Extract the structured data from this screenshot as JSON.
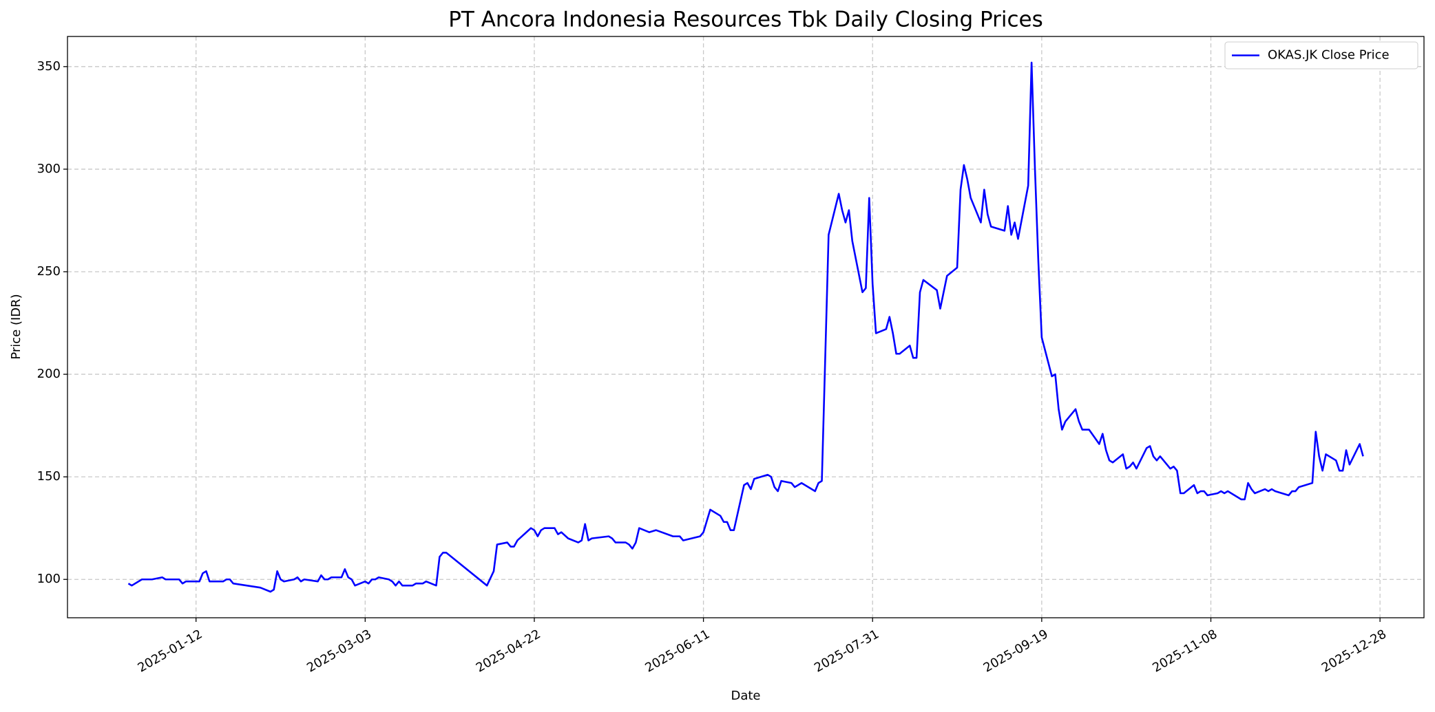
{
  "chart_data": {
    "type": "line",
    "title": "PT Ancora Indonesia Resources Tbk Daily Closing Prices",
    "x_label": "Date",
    "y_label": "Price (IDR)",
    "x": [
      "2024-12-23",
      "2024-12-24",
      "2024-12-27",
      "2024-12-30",
      "2025-01-02",
      "2025-01-03",
      "2025-01-07",
      "2025-01-08",
      "2025-01-09",
      "2025-01-13",
      "2025-01-14",
      "2025-01-15",
      "2025-01-16",
      "2025-01-20",
      "2025-01-21",
      "2025-01-22",
      "2025-01-23",
      "2025-01-31",
      "2025-02-03",
      "2025-02-04",
      "2025-02-05",
      "2025-02-06",
      "2025-02-07",
      "2025-02-10",
      "2025-02-11",
      "2025-02-12",
      "2025-02-13",
      "2025-02-17",
      "2025-02-18",
      "2025-02-19",
      "2025-02-20",
      "2025-02-21",
      "2025-02-24",
      "2025-02-25",
      "2025-02-26",
      "2025-02-27",
      "2025-02-28",
      "2025-03-03",
      "2025-03-04",
      "2025-03-05",
      "2025-03-06",
      "2025-03-07",
      "2025-03-10",
      "2025-03-11",
      "2025-03-12",
      "2025-03-13",
      "2025-03-14",
      "2025-03-17",
      "2025-03-18",
      "2025-03-20",
      "2025-03-21",
      "2025-03-24",
      "2025-03-25",
      "2025-03-26",
      "2025-03-27",
      "2025-04-08",
      "2025-04-10",
      "2025-04-11",
      "2025-04-14",
      "2025-04-15",
      "2025-04-16",
      "2025-04-17",
      "2025-04-21",
      "2025-04-22",
      "2025-04-23",
      "2025-04-24",
      "2025-04-25",
      "2025-04-28",
      "2025-04-29",
      "2025-04-30",
      "2025-05-02",
      "2025-05-05",
      "2025-05-06",
      "2025-05-07",
      "2025-05-08",
      "2025-05-09",
      "2025-05-14",
      "2025-05-15",
      "2025-05-16",
      "2025-05-19",
      "2025-05-20",
      "2025-05-21",
      "2025-05-22",
      "2025-05-23",
      "2025-05-26",
      "2025-05-28",
      "2025-06-02",
      "2025-06-04",
      "2025-06-05",
      "2025-06-10",
      "2025-06-11",
      "2025-06-13",
      "2025-06-16",
      "2025-06-17",
      "2025-06-18",
      "2025-06-19",
      "2025-06-20",
      "2025-06-23",
      "2025-06-24",
      "2025-06-25",
      "2025-06-26",
      "2025-06-30",
      "2025-07-01",
      "2025-07-02",
      "2025-07-03",
      "2025-07-04",
      "2025-07-07",
      "2025-07-08",
      "2025-07-10",
      "2025-07-14",
      "2025-07-15",
      "2025-07-16",
      "2025-07-18",
      "2025-07-21",
      "2025-07-22",
      "2025-07-23",
      "2025-07-24",
      "2025-07-25",
      "2025-07-28",
      "2025-07-29",
      "2025-07-30",
      "2025-07-31",
      "2025-08-01",
      "2025-08-04",
      "2025-08-05",
      "2025-08-06",
      "2025-08-07",
      "2025-08-08",
      "2025-08-11",
      "2025-08-12",
      "2025-08-13",
      "2025-08-14",
      "2025-08-15",
      "2025-08-19",
      "2025-08-20",
      "2025-08-21",
      "2025-08-22",
      "2025-08-25",
      "2025-08-26",
      "2025-08-27",
      "2025-08-28",
      "2025-08-29",
      "2025-09-01",
      "2025-09-02",
      "2025-09-03",
      "2025-09-04",
      "2025-09-08",
      "2025-09-09",
      "2025-09-10",
      "2025-09-11",
      "2025-09-12",
      "2025-09-15",
      "2025-09-16",
      "2025-09-17",
      "2025-09-18",
      "2025-09-19",
      "2025-09-22",
      "2025-09-23",
      "2025-09-24",
      "2025-09-25",
      "2025-09-26",
      "2025-09-29",
      "2025-09-30",
      "2025-10-01",
      "2025-10-03",
      "2025-10-06",
      "2025-10-07",
      "2025-10-08",
      "2025-10-09",
      "2025-10-10",
      "2025-10-13",
      "2025-10-14",
      "2025-10-15",
      "2025-10-16",
      "2025-10-17",
      "2025-10-20",
      "2025-10-21",
      "2025-10-22",
      "2025-10-23",
      "2025-10-24",
      "2025-10-27",
      "2025-10-28",
      "2025-10-29",
      "2025-10-30",
      "2025-10-31",
      "2025-11-03",
      "2025-11-04",
      "2025-11-05",
      "2025-11-06",
      "2025-11-07",
      "2025-11-10",
      "2025-11-11",
      "2025-11-12",
      "2025-11-13",
      "2025-11-17",
      "2025-11-18",
      "2025-11-19",
      "2025-11-20",
      "2025-11-21",
      "2025-11-24",
      "2025-11-25",
      "2025-11-26",
      "2025-11-27",
      "2025-12-01",
      "2025-12-02",
      "2025-12-03",
      "2025-12-04",
      "2025-12-08",
      "2025-12-09",
      "2025-12-10",
      "2025-12-11",
      "2025-12-12",
      "2025-12-15",
      "2025-12-16",
      "2025-12-17",
      "2025-12-18",
      "2025-12-19",
      "2025-12-22",
      "2025-12-23"
    ],
    "series": [
      {
        "name": "OKAS.JK Close Price",
        "color": "#0000ff",
        "values": [
          98,
          97,
          100,
          100,
          101,
          100,
          100,
          98,
          99,
          99,
          103,
          104,
          99,
          99,
          100,
          100,
          98,
          96,
          94,
          95,
          104,
          100,
          99,
          100,
          101,
          99,
          100,
          99,
          102,
          100,
          100,
          101,
          101,
          105,
          101,
          100,
          97,
          99,
          98,
          100,
          100,
          101,
          100,
          99,
          97,
          99,
          97,
          97,
          98,
          98,
          99,
          97,
          111,
          113,
          113,
          97,
          104,
          117,
          118,
          116,
          116,
          119,
          125,
          124,
          121,
          124,
          125,
          125,
          122,
          123,
          120,
          118,
          119,
          127,
          119,
          120,
          121,
          120,
          118,
          118,
          117,
          115,
          118,
          125,
          123,
          124,
          121,
          121,
          119,
          121,
          123,
          134,
          131,
          128,
          128,
          124,
          124,
          146,
          147,
          144,
          149,
          151,
          150,
          145,
          143,
          148,
          147,
          145,
          147,
          143,
          147,
          148,
          268,
          288,
          280,
          274,
          280,
          265,
          240,
          242,
          286,
          244,
          220,
          222,
          228,
          220,
          210,
          210,
          214,
          208,
          208,
          240,
          246,
          241,
          232,
          240,
          248,
          252,
          290,
          302,
          295,
          286,
          274,
          290,
          278,
          272,
          270,
          282,
          268,
          274,
          266,
          292,
          352,
          300,
          255,
          218,
          199,
          200,
          183,
          173,
          177,
          183,
          177,
          173,
          173,
          166,
          171,
          163,
          158,
          157,
          161,
          154,
          155,
          157,
          154,
          164,
          165,
          160,
          158,
          160,
          154,
          155,
          153,
          142,
          142,
          146,
          142,
          143,
          143,
          141,
          142,
          143,
          142,
          143,
          139,
          139,
          147,
          144,
          142,
          144,
          143,
          144,
          143,
          141,
          143,
          143,
          145,
          147,
          172,
          160,
          153,
          161,
          158,
          153,
          153,
          163,
          156,
          166,
          160
        ]
      }
    ],
    "xlim": [
      "2024-12-05",
      "2026-01-10"
    ],
    "xticks": [
      "2025-01-12",
      "2025-03-03",
      "2025-04-22",
      "2025-06-11",
      "2025-07-31",
      "2025-09-19",
      "2025-11-08",
      "2025-12-28"
    ],
    "ylim": [
      81.3,
      364.7
    ],
    "yticks": [
      100,
      150,
      200,
      250,
      300,
      350
    ],
    "grid": true,
    "legend": "upper right"
  }
}
